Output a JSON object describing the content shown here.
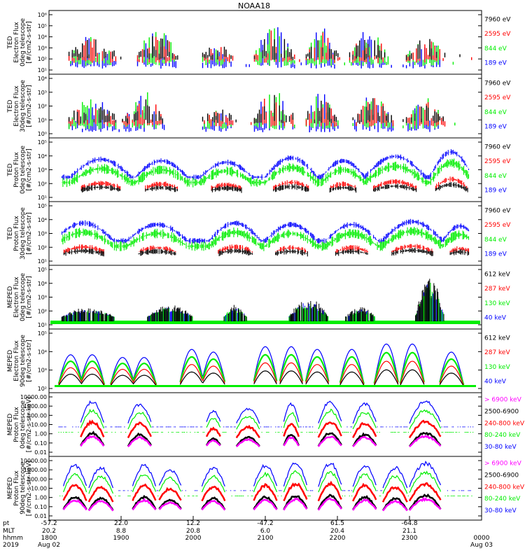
{
  "title": "NOAA18",
  "colors": {
    "blue": "#0000ff",
    "red": "#ff0000",
    "green": "#00ee00",
    "black": "#000000",
    "magenta": "#ff00ff"
  },
  "x_axis": {
    "row_labels": [
      "pt",
      "MLT",
      "hhmm",
      "2019"
    ],
    "columns": [
      {
        "pt": "-57.2",
        "mlt": "20.2",
        "hhmm": "1800",
        "date": "Aug 02"
      },
      {
        "pt": "22.0",
        "mlt": "8.8",
        "hhmm": "1900",
        "date": ""
      },
      {
        "pt": "12.2",
        "mlt": "20.8",
        "hhmm": "2000",
        "date": ""
      },
      {
        "pt": "-47.2",
        "mlt": "6.0",
        "hhmm": "2100",
        "date": ""
      },
      {
        "pt": "61.5",
        "mlt": "20.4",
        "hhmm": "2200",
        "date": ""
      },
      {
        "pt": "-64.8",
        "mlt": "21.1",
        "hhmm": "2300",
        "date": ""
      },
      {
        "pt": "",
        "mlt": "",
        "hhmm": "0000",
        "date": "Aug 03"
      }
    ]
  },
  "chart_data": [
    {
      "type": "line",
      "ylabel": [
        "TED",
        "Electron Flux",
        "0deg telescope",
        "[#/cm2-s-str]"
      ],
      "y_scale": "log",
      "ylim": [
        1,
        1000000
      ],
      "yticks": [
        "10¹",
        "10²",
        "10³",
        "10⁴",
        "10⁵",
        "10⁶"
      ],
      "legend": [
        {
          "label": "7960 eV",
          "color": "#000000"
        },
        {
          "label": "2595 eV",
          "color": "#ff0000"
        },
        {
          "label": "844 eV",
          "color": "#00ee00"
        },
        {
          "label": "189 eV",
          "color": "#0000ff"
        }
      ],
      "style": "ticks",
      "events": [
        {
          "t": 0.1,
          "w": 0.06,
          "amp": 0.55
        },
        {
          "t": 0.25,
          "w": 0.05,
          "amp": 0.7
        },
        {
          "t": 0.39,
          "w": 0.04,
          "amp": 0.3
        },
        {
          "t": 0.52,
          "w": 0.05,
          "amp": 0.8
        },
        {
          "t": 0.63,
          "w": 0.04,
          "amp": 0.7
        },
        {
          "t": 0.74,
          "w": 0.05,
          "amp": 0.65
        },
        {
          "t": 0.87,
          "w": 0.05,
          "amp": 0.6
        }
      ]
    },
    {
      "type": "line",
      "ylabel": [
        "TED",
        "Electron Flux",
        "30deg telescope",
        "[#/cm2-s-str]"
      ],
      "y_scale": "log",
      "ylim": [
        1,
        100000
      ],
      "yticks": [
        "10⁰",
        "10¹",
        "10²",
        "10³",
        "10⁴"
      ],
      "legend": [
        {
          "label": "7960 eV",
          "color": "#000000"
        },
        {
          "label": "2595 eV",
          "color": "#ff0000"
        },
        {
          "label": "844 eV",
          "color": "#00ee00"
        },
        {
          "label": "189 eV",
          "color": "#0000ff"
        }
      ],
      "style": "ticks",
      "events": [
        {
          "t": 0.1,
          "w": 0.06,
          "amp": 0.55
        },
        {
          "t": 0.22,
          "w": 0.05,
          "amp": 0.7
        },
        {
          "t": 0.39,
          "w": 0.04,
          "amp": 0.35
        },
        {
          "t": 0.52,
          "w": 0.05,
          "amp": 0.8
        },
        {
          "t": 0.63,
          "w": 0.04,
          "amp": 0.7
        },
        {
          "t": 0.75,
          "w": 0.05,
          "amp": 0.65
        },
        {
          "t": 0.87,
          "w": 0.05,
          "amp": 0.6
        }
      ]
    },
    {
      "type": "line",
      "ylabel": [
        "TED",
        "Proton Flux",
        "0deg telescope",
        "[#/cm2-s-str]"
      ],
      "y_scale": "log",
      "ylim": [
        1,
        100000
      ],
      "yticks": [
        "10¹",
        "10²",
        "10³",
        "10⁴",
        "10⁵"
      ],
      "legend": [
        {
          "label": "7960 eV",
          "color": "#000000"
        },
        {
          "label": "2595 eV",
          "color": "#ff0000"
        },
        {
          "label": "844 eV",
          "color": "#00ee00"
        },
        {
          "label": "189 eV",
          "color": "#0000ff"
        }
      ],
      "style": "dense",
      "events": [
        {
          "t": 0.12,
          "w": 0.07,
          "amp": 0.6
        },
        {
          "t": 0.26,
          "w": 0.06,
          "amp": 0.55
        },
        {
          "t": 0.41,
          "w": 0.06,
          "amp": 0.5
        },
        {
          "t": 0.56,
          "w": 0.06,
          "amp": 0.65
        },
        {
          "t": 0.68,
          "w": 0.05,
          "amp": 0.55
        },
        {
          "t": 0.8,
          "w": 0.07,
          "amp": 0.7
        },
        {
          "t": 0.93,
          "w": 0.05,
          "amp": 0.85
        }
      ]
    },
    {
      "type": "line",
      "ylabel": [
        "TED",
        "Proton Flux",
        "30deg telescope",
        "[#/cm2-s-str]"
      ],
      "y_scale": "log",
      "ylim": [
        1,
        100000
      ],
      "yticks": [
        "10¹",
        "10²",
        "10³",
        "10⁴",
        "10⁵"
      ],
      "legend": [
        {
          "label": "7960 eV",
          "color": "#000000"
        },
        {
          "label": "2595 eV",
          "color": "#ff0000"
        },
        {
          "label": "844 eV",
          "color": "#00ee00"
        },
        {
          "label": "189 eV",
          "color": "#0000ff"
        }
      ],
      "style": "dense",
      "events": [
        {
          "t": 0.08,
          "w": 0.07,
          "amp": 0.6
        },
        {
          "t": 0.25,
          "w": 0.07,
          "amp": 0.55
        },
        {
          "t": 0.43,
          "w": 0.06,
          "amp": 0.6
        },
        {
          "t": 0.56,
          "w": 0.06,
          "amp": 0.55
        },
        {
          "t": 0.7,
          "w": 0.06,
          "amp": 0.55
        },
        {
          "t": 0.84,
          "w": 0.07,
          "amp": 0.65
        },
        {
          "t": 0.95,
          "w": 0.04,
          "amp": 0.5
        }
      ]
    },
    {
      "type": "line",
      "ylabel": [
        "MEPED",
        "Electron Flux",
        "0deg telescope",
        "[#/cm2-s-str]"
      ],
      "y_scale": "log",
      "ylim": [
        10,
        1000000
      ],
      "yticks": [
        "10¹",
        "10²",
        "10³",
        "10⁴",
        "10⁵"
      ],
      "legend": [
        {
          "label": "612 keV",
          "color": "#000000"
        },
        {
          "label": "287 keV",
          "color": "#ff0000"
        },
        {
          "label": "130 keV",
          "color": "#00ee00"
        },
        {
          "label": "40 keV",
          "color": "#0000ff"
        }
      ],
      "style": "meped",
      "events": [
        {
          "t": 0.09,
          "w": 0.07,
          "amp": 0.25
        },
        {
          "t": 0.28,
          "w": 0.06,
          "amp": 0.3
        },
        {
          "t": 0.43,
          "w": 0.03,
          "amp": 0.3
        },
        {
          "t": 0.6,
          "w": 0.05,
          "amp": 0.45
        },
        {
          "t": 0.72,
          "w": 0.04,
          "amp": 0.25
        },
        {
          "t": 0.88,
          "w": 0.035,
          "amp": 0.95
        }
      ]
    },
    {
      "type": "line",
      "ylabel": [
        "MEPED",
        "Electron Flux",
        "90deg telescope",
        "[#/cm2-s-str]"
      ],
      "y_scale": "log",
      "ylim": [
        10,
        1000000
      ],
      "yticks": [
        "10²",
        "10³",
        "10⁴",
        "10⁵"
      ],
      "legend": [
        {
          "label": "612 keV",
          "color": "#000000"
        },
        {
          "label": "287 keV",
          "color": "#ff0000"
        },
        {
          "label": "130 keV",
          "color": "#00ee00"
        },
        {
          "label": "40 keV",
          "color": "#0000ff"
        }
      ],
      "style": "humps",
      "events": [
        {
          "t": 0.05,
          "w": 0.03,
          "amp": 0.6
        },
        {
          "t": 0.1,
          "w": 0.03,
          "amp": 0.6
        },
        {
          "t": 0.17,
          "w": 0.03,
          "amp": 0.55
        },
        {
          "t": 0.22,
          "w": 0.03,
          "amp": 0.55
        },
        {
          "t": 0.33,
          "w": 0.03,
          "amp": 0.7
        },
        {
          "t": 0.38,
          "w": 0.03,
          "amp": 0.65
        },
        {
          "t": 0.5,
          "w": 0.03,
          "amp": 0.75
        },
        {
          "t": 0.56,
          "w": 0.03,
          "amp": 0.75
        },
        {
          "t": 0.62,
          "w": 0.03,
          "amp": 0.7
        },
        {
          "t": 0.7,
          "w": 0.03,
          "amp": 0.7
        },
        {
          "t": 0.78,
          "w": 0.03,
          "amp": 0.8
        },
        {
          "t": 0.84,
          "w": 0.03,
          "amp": 0.8
        },
        {
          "t": 0.93,
          "w": 0.03,
          "amp": 0.65
        }
      ]
    },
    {
      "type": "line",
      "ylabel": [
        "MEPED",
        "Proton Flux",
        "0deg telescope",
        "[#/cm2-s-str-keV]"
      ],
      "y_scale": "log",
      "ylim": [
        0.01,
        10000
      ],
      "yticks": [
        "0.01",
        "0.10",
        "1.00",
        "10.00",
        "100.00",
        "1000.00",
        "10000.00"
      ],
      "legend": [
        {
          "label": "> 6900 keV",
          "color": "#ff00ff"
        },
        {
          "label": "2500-6900",
          "color": "#000000"
        },
        {
          "label": "240-800 keV",
          "color": "#ff0000"
        },
        {
          "label": "80-240 keV",
          "color": "#00ee00"
        },
        {
          "label": "30-80 keV",
          "color": "#0000ff"
        }
      ],
      "style": "proton",
      "events": [
        {
          "t": 0.1,
          "w": 0.03,
          "amp": 0.55
        },
        {
          "t": 0.21,
          "w": 0.03,
          "amp": 0.5
        },
        {
          "t": 0.38,
          "w": 0.02,
          "amp": 0.35
        },
        {
          "t": 0.46,
          "w": 0.03,
          "amp": 0.4
        },
        {
          "t": 0.56,
          "w": 0.02,
          "amp": 0.5
        },
        {
          "t": 0.65,
          "w": 0.03,
          "amp": 0.55
        },
        {
          "t": 0.73,
          "w": 0.03,
          "amp": 0.5
        },
        {
          "t": 0.87,
          "w": 0.04,
          "amp": 0.55
        }
      ]
    },
    {
      "type": "line",
      "ylabel": [
        "MEPED",
        "Proton Flux",
        "90deg telescope",
        "[#/cm2-s-str-keV]"
      ],
      "y_scale": "log",
      "ylim": [
        0.01,
        10000
      ],
      "yticks": [
        "0.01",
        "0.10",
        "1.00",
        "10.00",
        "100.00",
        "1000.00",
        "10000.00"
      ],
      "legend": [
        {
          "label": "> 6900 keV",
          "color": "#ff00ff"
        },
        {
          "label": "2500-6900",
          "color": "#000000"
        },
        {
          "label": "240-800 keV",
          "color": "#ff0000"
        },
        {
          "label": "80-240 keV",
          "color": "#00ee00"
        },
        {
          "label": "30-80 keV",
          "color": "#0000ff"
        }
      ],
      "style": "proton",
      "events": [
        {
          "t": 0.06,
          "w": 0.03,
          "amp": 0.55
        },
        {
          "t": 0.12,
          "w": 0.03,
          "amp": 0.5
        },
        {
          "t": 0.22,
          "w": 0.03,
          "amp": 0.55
        },
        {
          "t": 0.28,
          "w": 0.03,
          "amp": 0.45
        },
        {
          "t": 0.38,
          "w": 0.03,
          "amp": 0.5
        },
        {
          "t": 0.5,
          "w": 0.03,
          "amp": 0.55
        },
        {
          "t": 0.57,
          "w": 0.03,
          "amp": 0.6
        },
        {
          "t": 0.65,
          "w": 0.03,
          "amp": 0.6
        },
        {
          "t": 0.73,
          "w": 0.03,
          "amp": 0.55
        },
        {
          "t": 0.8,
          "w": 0.03,
          "amp": 0.5
        },
        {
          "t": 0.87,
          "w": 0.04,
          "amp": 0.6
        }
      ]
    }
  ]
}
